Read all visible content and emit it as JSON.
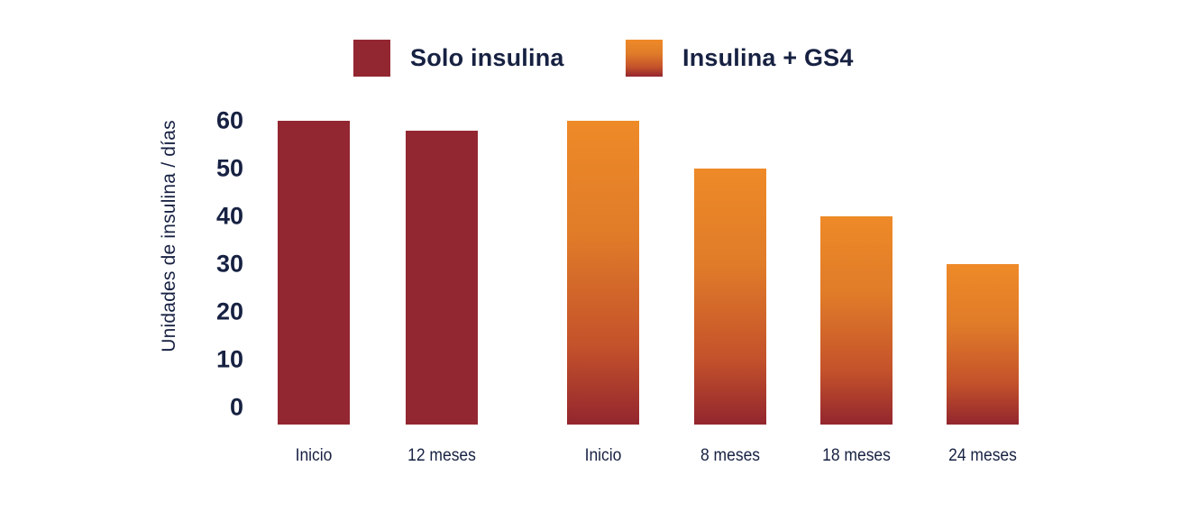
{
  "chart_data": {
    "type": "bar",
    "title": "",
    "ylabel": "Unidades de insulina / días",
    "ylim": [
      0,
      60
    ],
    "yticks": [
      60,
      50,
      40,
      30,
      20,
      10,
      0
    ],
    "grid": false,
    "legend_position": "top",
    "legend": [
      {
        "label": "Solo insulina",
        "swatch": "solid",
        "color": "#932731"
      },
      {
        "label": "Insulina + GS4",
        "swatch": "gradient",
        "color_top": "#EE8A28",
        "color_bottom": "#93262E"
      }
    ],
    "series": [
      {
        "name": "Solo insulina",
        "categories": [
          "Inicio",
          "12 meses"
        ],
        "values": [
          60,
          58
        ]
      },
      {
        "name": "Insulina + GS4",
        "categories": [
          "Inicio",
          "8 meses",
          "18 meses",
          "24 meses"
        ],
        "values": [
          60,
          50,
          40,
          30
        ]
      }
    ]
  },
  "colors": {
    "text_navy": "#172142",
    "solid_red": "#932731",
    "orange_top": "#EE8A28",
    "orange_bottom": "#93262E",
    "background": "#FFFFFF"
  }
}
